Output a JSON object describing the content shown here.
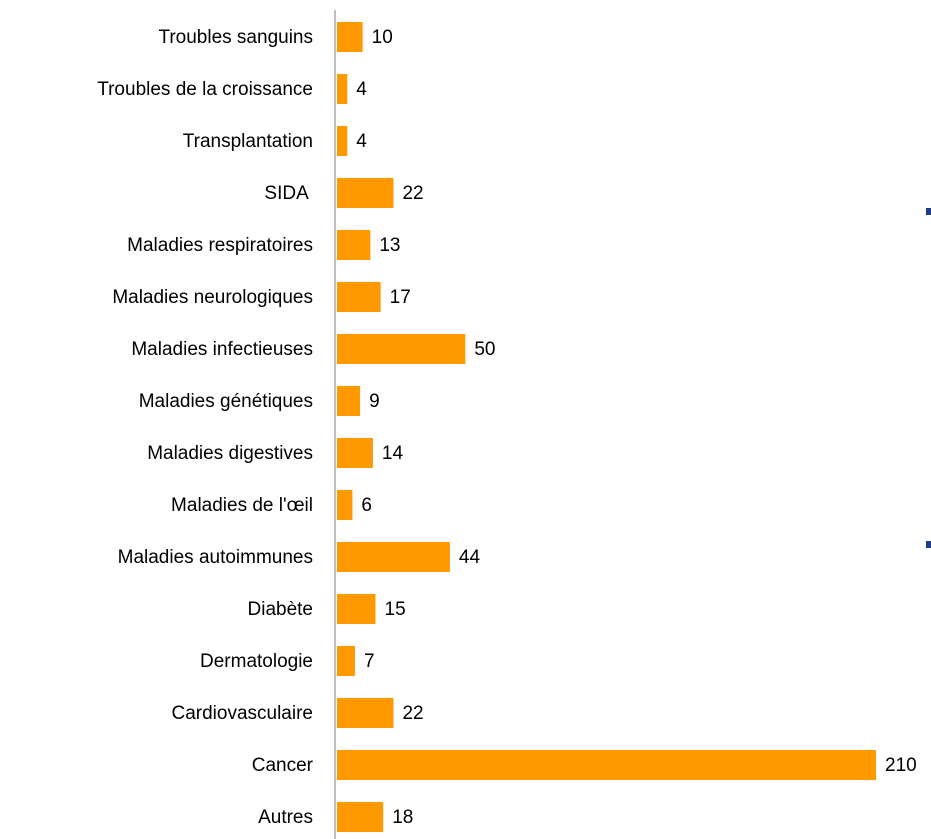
{
  "chart_data": {
    "type": "bar",
    "orientation": "horizontal",
    "categories": [
      "Troubles sanguins",
      "Troubles de la croissance",
      "Transplantation",
      "SIDA ",
      "Maladies respiratoires",
      "Maladies neurologiques",
      "Maladies infectieuses",
      "Maladies génétiques",
      "Maladies digestives",
      "Maladies de l'œil",
      "Maladies autoimmunes",
      "Diabète",
      "Dermatologie",
      "Cardiovasculaire",
      "Cancer",
      "Autres"
    ],
    "values": [
      10,
      4,
      4,
      22,
      13,
      17,
      50,
      9,
      14,
      6,
      44,
      15,
      7,
      22,
      210,
      18
    ],
    "color": "#ff9900",
    "xlim": [
      0,
      210
    ]
  }
}
